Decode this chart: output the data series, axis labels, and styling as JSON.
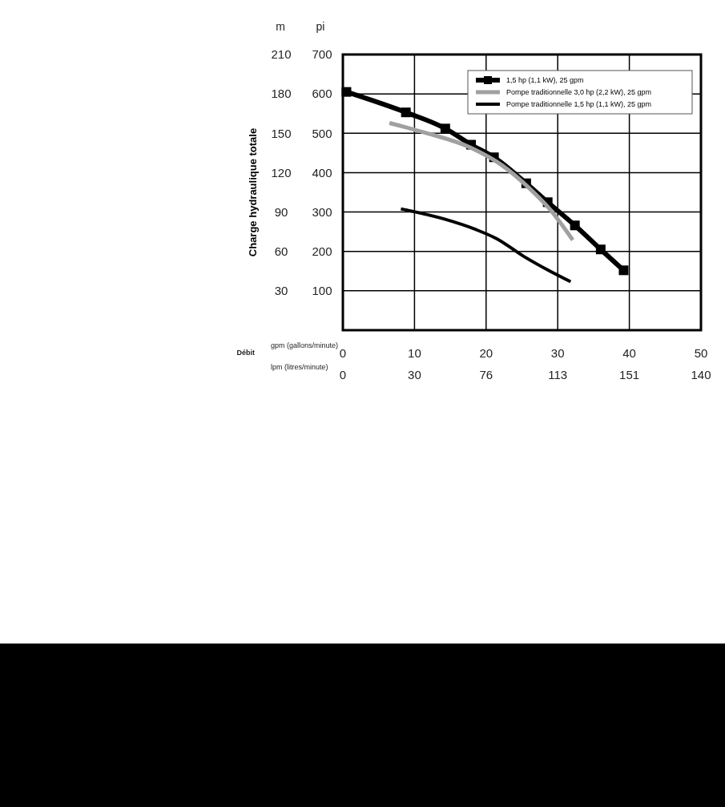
{
  "chart_data": {
    "type": "line",
    "ylabel": "Charge hydraulique totale",
    "xlabel": "gpm (gallons/minute)",
    "annotations": [
      "Débit",
      "m",
      "pi",
      "lpm (litres/minute)",
      "0",
      "30",
      "76",
      "113",
      "151",
      "140"
    ],
    "xlim": [
      0,
      50
    ],
    "xticks": [
      0,
      10,
      20,
      30,
      40,
      50
    ],
    "ylim": [
      0,
      210
    ],
    "yticks": [
      30,
      60,
      90,
      120,
      150,
      180,
      210
    ],
    "y2lim": [
      0,
      700
    ],
    "y2ticks": [
      100,
      200,
      300,
      400,
      500,
      600,
      700
    ],
    "grid": true,
    "legend": "top right",
    "series": [
      {
        "name": "1,5 hp (1,1 kW), 25 gpm",
        "color": "#000000",
        "marker": "square",
        "axis": "y2",
        "x": [
          0.5,
          8.8,
          14.3,
          17.9,
          21.1,
          25.6,
          28.6,
          32.4,
          36,
          39.2
        ],
        "values": [
          605,
          553,
          512,
          471,
          439,
          373,
          325,
          266,
          205,
          152
        ]
      },
      {
        "name": "Pompe traditionnelle 3,0 hp (2,2 kW), 25 gpm",
        "color": "#a0a0a0",
        "marker": "none",
        "axis": "y2",
        "x": [
          6.5,
          11.4,
          17.9,
          22.2,
          26,
          28.9,
          32.1
        ],
        "values": [
          526,
          502,
          463,
          419,
          361,
          307,
          229
        ]
      },
      {
        "name": "Pompe traditionnelle 1,5 hp (1,1 kW), 25 gpm",
        "color": "#000000",
        "marker": "none",
        "axis": "y2",
        "x": [
          8.1,
          14,
          18.5,
          21.5,
          25.2,
          28.9,
          31.8
        ],
        "values": [
          308,
          283,
          256,
          232,
          188,
          150,
          123
        ]
      }
    ]
  }
}
